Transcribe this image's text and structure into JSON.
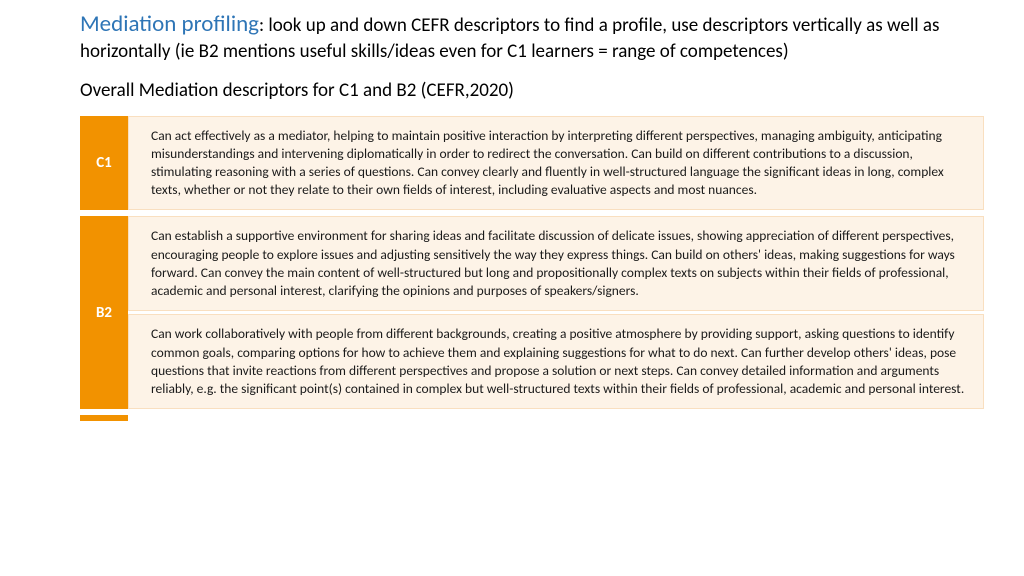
{
  "header": {
    "title_strong": "Mediation profiling",
    "title_rest": ": look up and down CEFR descriptors to find a profile, use descriptors vertically as well as horizontally (ie B2 mentions useful skills/ideas even for C1 learners = range of competences)",
    "subtitle": "Overall Mediation descriptors for C1 and B2 (CEFR,2020)"
  },
  "colors": {
    "title_strong": "#2e75b6",
    "level_bg": "#f29200",
    "level_text": "#ffffff",
    "desc_bg": "#fdf3e7",
    "desc_border": "#f9dfc0",
    "body_text": "#000000"
  },
  "rows": [
    {
      "level": "C1",
      "descriptors": [
        "Can act effectively as a mediator, helping to maintain positive interaction by interpreting different perspectives, managing ambiguity, anticipating misunderstandings and intervening diplomatically in order to redirect the conversation. Can build on different contributions to a discussion, stimulating reasoning with a series of questions. Can convey clearly and fluently in well-structured language the significant ideas in long, complex texts, whether or not they relate to their own fields of interest, including evaluative aspects and most nuances."
      ]
    },
    {
      "level": "B2",
      "descriptors": [
        "Can establish a supportive environment for sharing ideas and facilitate discussion of delicate issues, showing appreciation of different perspectives, encouraging people to explore issues and adjusting sensitively the way they express things. Can build on others' ideas, making suggestions for ways forward. Can convey the main content of well-structured but long and propositionally complex texts on subjects within their fields of professional, academic and personal interest, clarifying the opinions and purposes of speakers/signers.",
        "Can work collaboratively with people from different backgrounds, creating a positive atmosphere by providing support, asking questions to identify common goals, comparing options for how to achieve them and explaining suggestions for what to do next. Can further develop others' ideas, pose questions that invite reactions from different perspectives and propose a solution or next steps. Can convey detailed information and arguments reliably, e.g. the significant point(s) contained in complex but well-structured texts within their fields of professional, academic and personal interest."
      ]
    }
  ]
}
